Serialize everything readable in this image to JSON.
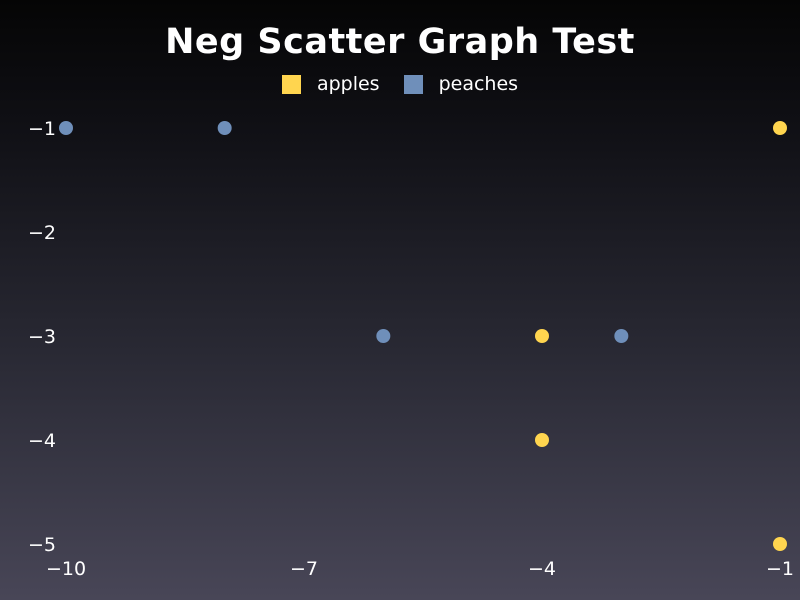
{
  "chart_data": {
    "type": "scatter",
    "title": "Neg Scatter Graph Test",
    "xlabel": "",
    "ylabel": "",
    "xlim": [
      -10,
      -1
    ],
    "ylim": [
      -5,
      -1
    ],
    "x_ticks": [
      {
        "value": -10,
        "label": "−10"
      },
      {
        "value": -7,
        "label": "−7"
      },
      {
        "value": -4,
        "label": "−4"
      },
      {
        "value": -1,
        "label": "−1"
      }
    ],
    "y_ticks": [
      {
        "value": -1,
        "label": "−1"
      },
      {
        "value": -2,
        "label": "−2"
      },
      {
        "value": -3,
        "label": "−3"
      },
      {
        "value": -4,
        "label": "−4"
      },
      {
        "value": -5,
        "label": "−5"
      }
    ],
    "grid": false,
    "legend_position": "top-center",
    "series": [
      {
        "name": "apples",
        "color": "#ffd54f",
        "points": [
          {
            "x": -1,
            "y": -1
          },
          {
            "x": -4,
            "y": -3
          },
          {
            "x": -4,
            "y": -4
          },
          {
            "x": -1,
            "y": -5
          }
        ]
      },
      {
        "name": "peaches",
        "color": "#6f8fba",
        "points": [
          {
            "x": -10,
            "y": -1
          },
          {
            "x": -8,
            "y": -1
          },
          {
            "x": -6,
            "y": -3
          },
          {
            "x": -3,
            "y": -3
          }
        ]
      }
    ]
  }
}
